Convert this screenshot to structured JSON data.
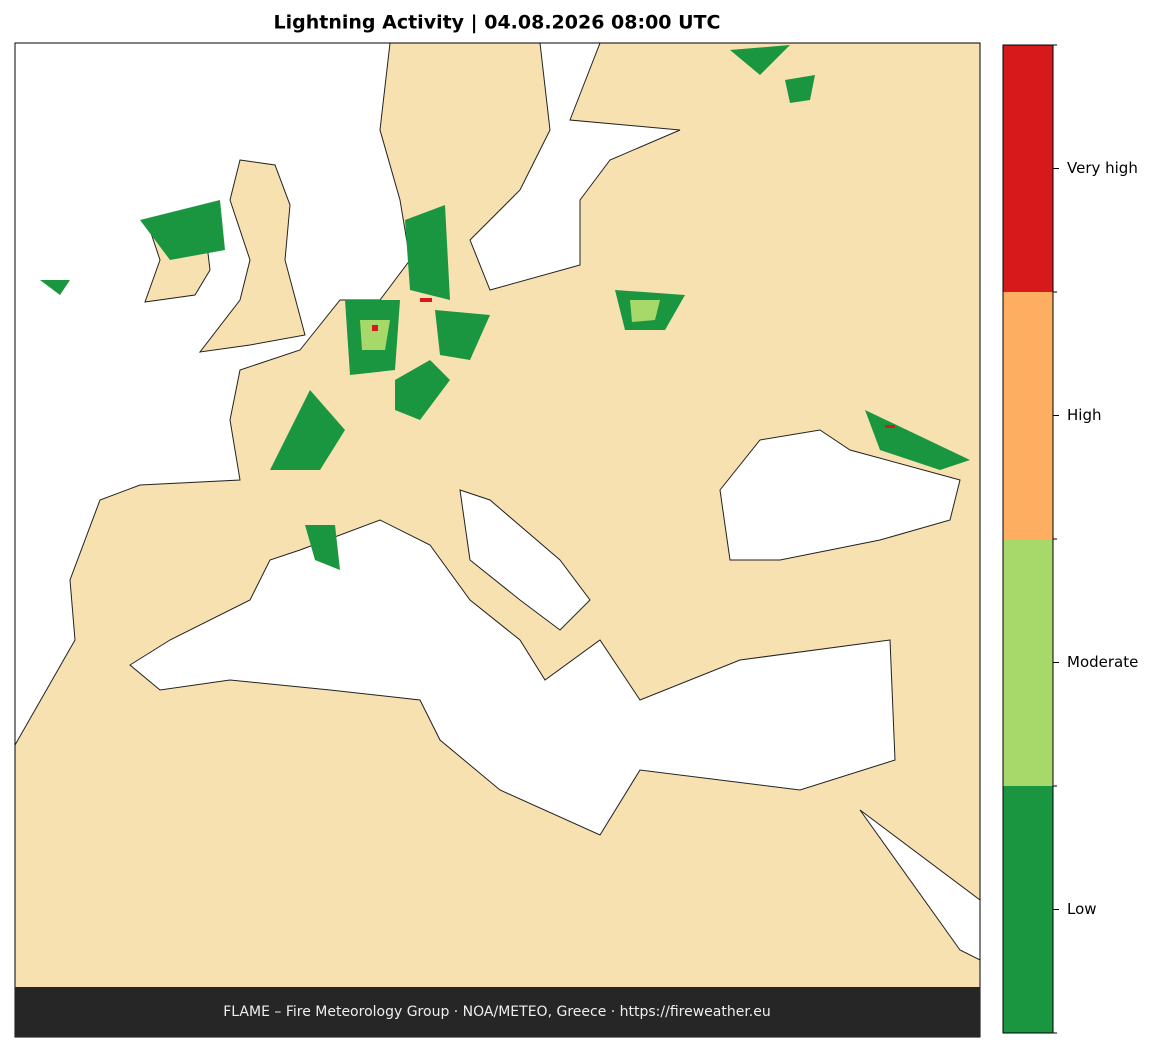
{
  "title": "Lightning Activity  |  04.08.2026 08:00 UTC",
  "colorbar": {
    "labels": [
      "Very high",
      "High",
      "Moderate",
      "Low"
    ],
    "colors": [
      "#d7191c",
      "#fdae61",
      "#a6d96a",
      "#1a9641"
    ]
  },
  "footer": "FLAME – Fire Meteorology Group · NOA/METEO, Greece · https://fireweather.eu"
}
